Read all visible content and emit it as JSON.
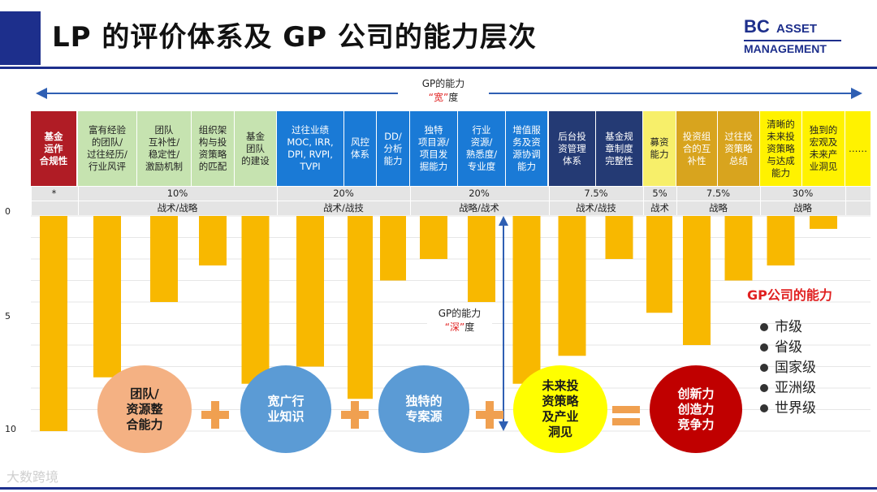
{
  "header": {
    "title": "LP 的评价体系及 GP 公司的能力层次",
    "logo": {
      "bc": "BC",
      "asset": "ASSET",
      "management": "MANAGEMENT"
    },
    "accent_color": "#1d2f8c"
  },
  "width_axis": {
    "line1": "GP的能力",
    "quote_open": "“",
    "highlight": "宽",
    "quote_close": "”",
    "suffix": "度"
  },
  "depth_axis": {
    "line1": "GP的能力",
    "quote_open": "“",
    "highlight": "深",
    "quote_close": "”",
    "suffix": "度"
  },
  "chart_data": {
    "type": "bar",
    "categories": [
      "基金运作合规性",
      "富有经验的团队/过往经历/行业风评",
      "团队互补性/稳定性/激励机制",
      "组织架构与投资策略的匹配",
      "基金团队的建设",
      "过往业绩MOC, IRR, DPI, RVPI, TVPI",
      "风控体系",
      "DD/分析能力",
      "独特项目源/项目发掘能力",
      "行业资源/熟悉度/专业度",
      "增值服务及资源协调能力",
      "后台投资管理体系",
      "基金规章制度完整性",
      "募资能力",
      "投资组合的互补性",
      "过往投资策略总结",
      "清晰的未来投资策略与达成能力",
      "独到的宏观及未来产业洞见",
      "……"
    ],
    "values": [
      10,
      7.5,
      4,
      2.3,
      7.8,
      7,
      8.5,
      3,
      2,
      4,
      7.8,
      6.5,
      2,
      4.5,
      6,
      3,
      2.3,
      0.6,
      null
    ],
    "ylim": [
      0,
      10
    ],
    "yticks": [
      0,
      5,
      10
    ],
    "y_inverted": true,
    "bar_color": "#f8b800"
  },
  "category_header": [
    {
      "label": "基金\n运作\n合规性",
      "bg": "#b01c25",
      "fg": "#ffffff",
      "bold": true
    },
    {
      "label": "富有经验\n的团队/\n过往经历/\n行业风评",
      "bg": "#c6e3b0",
      "fg": "#222222",
      "bold": false
    },
    {
      "label": "团队\n互补性/\n稳定性/\n激励机制",
      "bg": "#c6e3b0",
      "fg": "#222222",
      "bold": false
    },
    {
      "label": "组织架\n构与投\n资策略\n的匹配",
      "bg": "#c6e3b0",
      "fg": "#222222",
      "bold": false
    },
    {
      "label": "基金\n团队\n的建设",
      "bg": "#c6e3b0",
      "fg": "#222222",
      "bold": false
    },
    {
      "label": "过往业绩\nMOC, IRR,\nDPI, RVPI,\nTVPI",
      "bg": "#1a7ad6",
      "fg": "#ffffff",
      "bold": false
    },
    {
      "label": "风控\n体系",
      "bg": "#1a7ad6",
      "fg": "#ffffff",
      "bold": false
    },
    {
      "label": "DD/\n分析\n能力",
      "bg": "#1a7ad6",
      "fg": "#ffffff",
      "bold": false
    },
    {
      "label": "独特\n项目源/\n项目发\n掘能力",
      "bg": "#1a7ad6",
      "fg": "#ffffff",
      "bold": false
    },
    {
      "label": "行业\n资源/\n熟悉度/\n专业度",
      "bg": "#1a7ad6",
      "fg": "#ffffff",
      "bold": false
    },
    {
      "label": "增值服\n务及资\n源协调\n能力",
      "bg": "#1a7ad6",
      "fg": "#ffffff",
      "bold": false
    },
    {
      "label": "后台投\n资管理\n体系",
      "bg": "#243a74",
      "fg": "#ffffff",
      "bold": false
    },
    {
      "label": "基金规\n章制度\n完整性",
      "bg": "#243a74",
      "fg": "#ffffff",
      "bold": false
    },
    {
      "label": "募资\n能力",
      "bg": "#f7ef6a",
      "fg": "#222222",
      "bold": false
    },
    {
      "label": "投资组\n合的互\n补性",
      "bg": "#d8a41e",
      "fg": "#ffffff",
      "bold": false
    },
    {
      "label": "过往投\n资策略\n总结",
      "bg": "#d8a41e",
      "fg": "#ffffff",
      "bold": false
    },
    {
      "label": "清晰的\n未来投\n资策略\n与达成\n能力",
      "bg": "#fff200",
      "fg": "#222222",
      "bold": false
    },
    {
      "label": "独到的\n宏观及\n未来产\n业洞见",
      "bg": "#fff200",
      "fg": "#222222",
      "bold": false
    },
    {
      "label": "……",
      "bg": "#fff200",
      "fg": "#222222",
      "bold": false
    }
  ],
  "weights": [
    {
      "label": "*",
      "from": 0,
      "to": 0
    },
    {
      "label": "10%",
      "from": 1,
      "to": 4
    },
    {
      "label": "20%",
      "from": 5,
      "to": 7
    },
    {
      "label": "20%",
      "from": 8,
      "to": 10
    },
    {
      "label": "7.5%",
      "from": 11,
      "to": 12
    },
    {
      "label": "5%",
      "from": 13,
      "to": 13
    },
    {
      "label": "7.5%",
      "from": 14,
      "to": 15
    },
    {
      "label": "30%",
      "from": 16,
      "to": 17
    },
    {
      "label": "",
      "from": 18,
      "to": 18
    }
  ],
  "types": [
    {
      "label": "",
      "from": 0,
      "to": 0
    },
    {
      "label": "战术/战略",
      "from": 1,
      "to": 4
    },
    {
      "label": "战术/战技",
      "from": 5,
      "to": 7
    },
    {
      "label": "战略/战术",
      "from": 8,
      "to": 10
    },
    {
      "label": "战术/战技",
      "from": 11,
      "to": 12
    },
    {
      "label": "战术",
      "from": 13,
      "to": 13
    },
    {
      "label": "战略",
      "from": 14,
      "to": 15
    },
    {
      "label": "战略",
      "from": 16,
      "to": 17
    },
    {
      "label": "",
      "from": 18,
      "to": 18
    }
  ],
  "y_axis_labels": [
    "0",
    "5",
    "10"
  ],
  "legend": {
    "title": "GP公司的能力",
    "items": [
      "市级",
      "省级",
      "国家级",
      "亚洲级",
      "世界级"
    ]
  },
  "formula": [
    {
      "label": "团队/\n资源整\n合能力",
      "bg": "#f4b183",
      "fg": "#1a1a1a"
    },
    {
      "label": "宽广行\n业知识",
      "bg": "#5b9bd5",
      "fg": "#ffffff"
    },
    {
      "label": "独特的\n专案源",
      "bg": "#5b9bd5",
      "fg": "#ffffff"
    },
    {
      "label": "未来投\n资策略\n及产业\n洞见",
      "bg": "#ffff00",
      "fg": "#1a1a1a"
    },
    {
      "label": "创新力\n创造力\n竞争力",
      "bg": "#c00000",
      "fg": "#ffffff"
    }
  ],
  "watermark": "大数跨境"
}
